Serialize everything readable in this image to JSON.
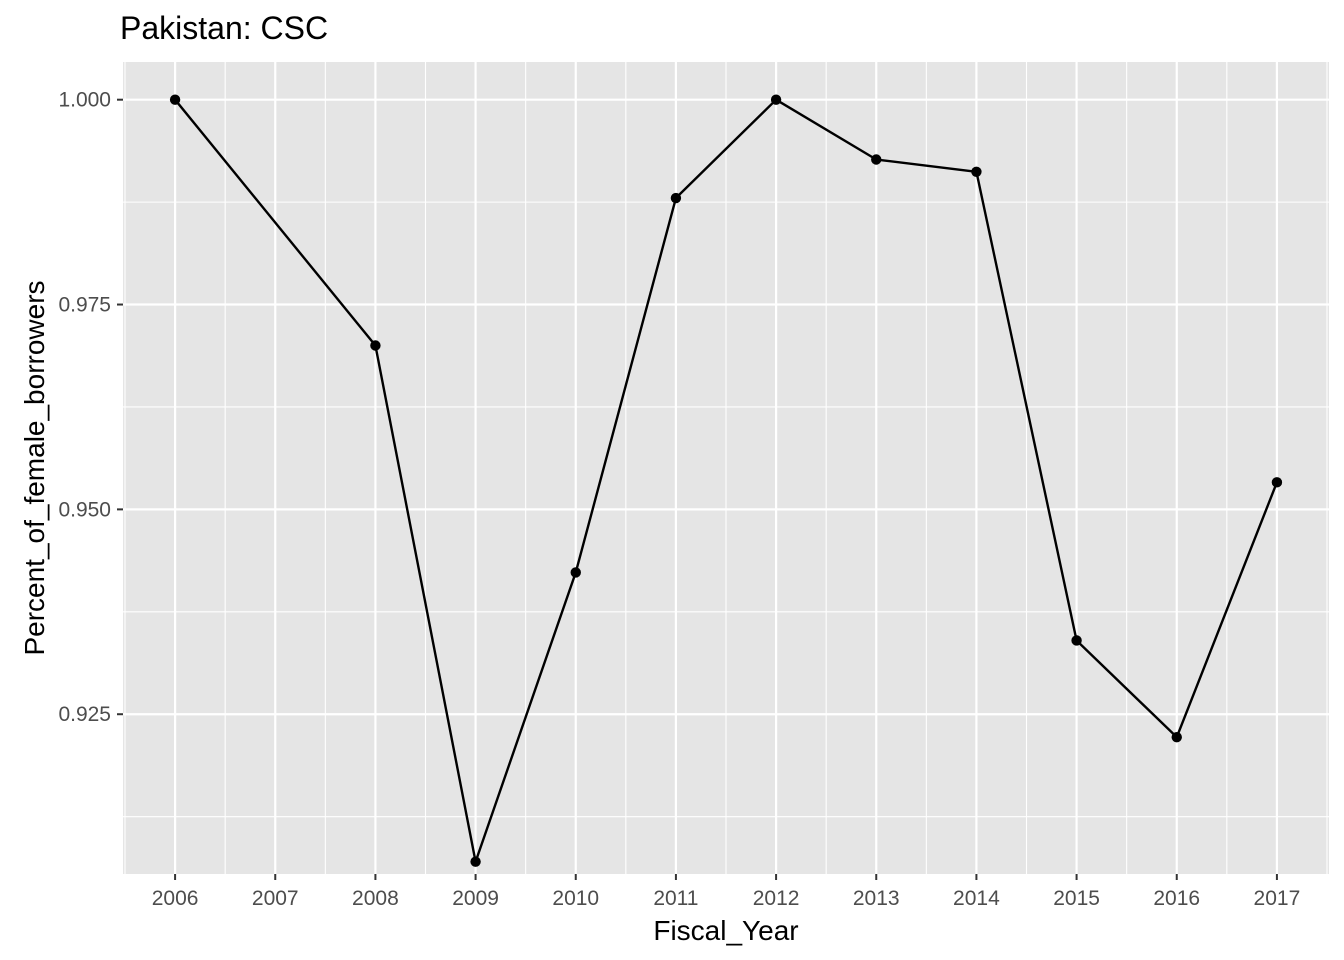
{
  "chart_data": {
    "type": "line",
    "title": "Pakistan:  CSC",
    "xlabel": "Fiscal_Year",
    "ylabel": "Percent_of_female_borrowers",
    "x_ticks": [
      "2006",
      "2007",
      "2008",
      "2009",
      "2010",
      "2011",
      "2012",
      "2013",
      "2014",
      "2015",
      "2016",
      "2017"
    ],
    "y_ticks": [
      "0.925",
      "0.950",
      "0.975",
      "1.000"
    ],
    "xlim": [
      2005.48,
      2017.52
    ],
    "ylim": [
      0.9055,
      1.0046
    ],
    "grid": true,
    "series": [
      {
        "name": "Percent_of_female_borrowers",
        "x": [
          2006,
          2008,
          2009,
          2010,
          2011,
          2012,
          2013,
          2014,
          2015,
          2016,
          2017
        ],
        "values": [
          1.0,
          0.97,
          0.907,
          0.9423,
          0.988,
          1.0,
          0.9927,
          0.9912,
          0.934,
          0.9222,
          0.9533
        ]
      }
    ]
  },
  "colors": {
    "panel": "#e5e5e5",
    "grid": "#ffffff",
    "line": "#000000",
    "point": "#000000"
  }
}
